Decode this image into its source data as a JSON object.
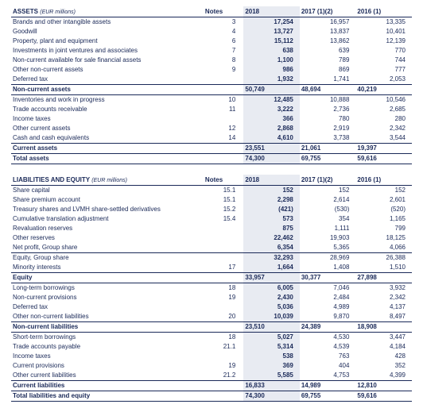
{
  "assets": {
    "title": "ASSETS",
    "unit": "(EUR millions)",
    "cols": [
      "Notes",
      "2018",
      "2017 (1)(2)",
      "2016 (1)"
    ],
    "rows": [
      {
        "l": "Brands and other intangible assets",
        "n": "3",
        "a": "17,254",
        "b": "16,957",
        "c": "13,335"
      },
      {
        "l": "Goodwill",
        "n": "4",
        "a": "13,727",
        "b": "13,837",
        "c": "10,401"
      },
      {
        "l": "Property, plant and equipment",
        "n": "6",
        "a": "15,112",
        "b": "13,862",
        "c": "12,139"
      },
      {
        "l": "Investments in joint ventures and associates",
        "n": "7",
        "a": "638",
        "b": "639",
        "c": "770"
      },
      {
        "l": "Non-current available for sale financial assets",
        "n": "8",
        "a": "1,100",
        "b": "789",
        "c": "744"
      },
      {
        "l": "Other non-current assets",
        "n": "9",
        "a": "986",
        "b": "869",
        "c": "777"
      },
      {
        "l": "Deferred tax",
        "n": "",
        "a": "1,932",
        "b": "1,741",
        "c": "2,053"
      }
    ],
    "sub1": {
      "l": "Non-current assets",
      "a": "50,749",
      "b": "48,694",
      "c": "40,219"
    },
    "rows2": [
      {
        "l": "Inventories and work in progress",
        "n": "10",
        "a": "12,485",
        "b": "10,888",
        "c": "10,546"
      },
      {
        "l": "Trade accounts receivable",
        "n": "11",
        "a": "3,222",
        "b": "2,736",
        "c": "2,685"
      },
      {
        "l": "Income taxes",
        "n": "",
        "a": "366",
        "b": "780",
        "c": "280"
      },
      {
        "l": "Other current assets",
        "n": "12",
        "a": "2,868",
        "b": "2,919",
        "c": "2,342"
      },
      {
        "l": "Cash and cash equivalents",
        "n": "14",
        "a": "4,610",
        "b": "3,738",
        "c": "3,544"
      }
    ],
    "sub2": {
      "l": "Current assets",
      "a": "23,551",
      "b": "21,061",
      "c": "19,397"
    },
    "tot": {
      "l": "Total assets",
      "a": "74,300",
      "b": "69,755",
      "c": "59,616"
    }
  },
  "liab": {
    "title": "LIABILITIES AND EQUITY",
    "unit": "(EUR millions)",
    "cols": [
      "Notes",
      "2018",
      "2017 (1)(2)",
      "2016 (1)"
    ],
    "rows": [
      {
        "l": "Share capital",
        "n": "15.1",
        "a": "152",
        "b": "152",
        "c": "152"
      },
      {
        "l": "Share premium account",
        "n": "15.1",
        "a": "2,298",
        "b": "2,614",
        "c": "2,601"
      },
      {
        "l": "Treasury shares and LVMH share-settled derivatives",
        "n": "15.2",
        "a": "(421)",
        "b": "(530)",
        "c": "(520)"
      },
      {
        "l": "Cumulative translation adjustment",
        "n": "15.4",
        "a": "573",
        "b": "354",
        "c": "1,165"
      },
      {
        "l": "Revaluation reserves",
        "n": "",
        "a": "875",
        "b": "1,111",
        "c": "799"
      },
      {
        "l": "Other reserves",
        "n": "",
        "a": "22,462",
        "b": "19,903",
        "c": "18,125"
      },
      {
        "l": "Net profit, Group share",
        "n": "",
        "a": "6,354",
        "b": "5,365",
        "c": "4,066"
      }
    ],
    "rows1b": [
      {
        "l": "Equity, Group share",
        "n": "",
        "a": "32,293",
        "b": "28,969",
        "c": "26,388"
      },
      {
        "l": "Minority interests",
        "n": "17",
        "a": "1,664",
        "b": "1,408",
        "c": "1,510"
      }
    ],
    "sub1": {
      "l": "Equity",
      "a": "33,957",
      "b": "30,377",
      "c": "27,898"
    },
    "rows2": [
      {
        "l": "Long-term borrowings",
        "n": "18",
        "a": "6,005",
        "b": "7,046",
        "c": "3,932"
      },
      {
        "l": "Non-current provisions",
        "n": "19",
        "a": "2,430",
        "b": "2,484",
        "c": "2,342"
      },
      {
        "l": "Deferred tax",
        "n": "",
        "a": "5,036",
        "b": "4,989",
        "c": "4,137"
      },
      {
        "l": "Other non-current liabilities",
        "n": "20",
        "a": "10,039",
        "b": "9,870",
        "c": "8,497"
      }
    ],
    "sub2": {
      "l": "Non-current liabilities",
      "a": "23,510",
      "b": "24,389",
      "c": "18,908"
    },
    "rows3": [
      {
        "l": "Short-term borrowings",
        "n": "18",
        "a": "5,027",
        "b": "4,530",
        "c": "3,447"
      },
      {
        "l": "Trade accounts payable",
        "n": "21.1",
        "a": "5,314",
        "b": "4,539",
        "c": "4,184"
      },
      {
        "l": "Income taxes",
        "n": "",
        "a": "538",
        "b": "763",
        "c": "428"
      },
      {
        "l": "Current provisions",
        "n": "19",
        "a": "369",
        "b": "404",
        "c": "352"
      },
      {
        "l": "Other current liabilities",
        "n": "21.2",
        "a": "5,585",
        "b": "4,753",
        "c": "4,399"
      }
    ],
    "sub3": {
      "l": "Current liabilities",
      "a": "16,833",
      "b": "14,989",
      "c": "12,810"
    },
    "tot": {
      "l": "Total liabilities and equity",
      "a": "74,300",
      "b": "69,755",
      "c": "59,616"
    }
  }
}
